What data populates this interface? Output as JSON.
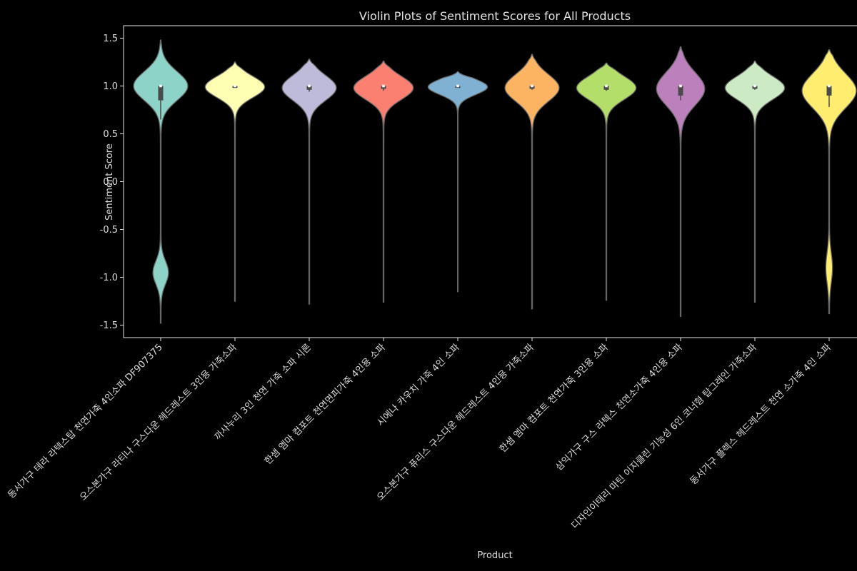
{
  "chart_data": {
    "type": "violin",
    "title": "Violin Plots of Sentiment Scores for All Products",
    "xlabel": "Product",
    "ylabel": "Sentiment Score",
    "ylim": [
      -1.63,
      1.63
    ],
    "yticks": [
      1.5,
      1.0,
      0.5,
      0.0,
      -0.5,
      -1.0,
      -1.5
    ],
    "ytick_labels": [
      "1.5",
      "1.0",
      "0.5",
      "0.0",
      "-0.5",
      "-1.0",
      "-1.5"
    ],
    "grid": false,
    "legend": "none",
    "categories": [
      "동서가구 테라 라텍스탑 천연가죽 4인소파 DF907375",
      "오스본가구 라티나 구스다운 헤드레스트 3인용 가죽소파",
      "까사누리 3인 천연 가죽 소파 시론",
      "한샘 엠마 컴포트 천연면피가죽 4인용 소파",
      "시에나 카우치 가죽 4인 소파",
      "오스본가구 퓨리스 구스다운 헤드레스트 4인용 가죽소파",
      "한샘 엠마 컴포트 천연가죽 3인용 소파",
      "삼익가구 구스 라텍스 천연소가죽 4인용 소파",
      "디자인이태리 마틴 이지클린 기능성 6인 코너형 탑그레인 가죽소파",
      "동서가구 플렉스 헤드레스트 천연 소가죽 4인 소파"
    ],
    "colors": [
      "#8dd3c7",
      "#ffffb3",
      "#bebada",
      "#fb8072",
      "#80b1d3",
      "#fdb462",
      "#b3de69",
      "#bc80bd",
      "#ccebc5",
      "#ffed6f"
    ],
    "violins": [
      {
        "min": -1.48,
        "max": 1.48,
        "q1": 0.85,
        "median": 1.0,
        "q3": 1.0,
        "whisker_low": 0.65,
        "whisker_high": 1.0,
        "main_mode": 1.0,
        "main_width": 0.9,
        "main_sd": 0.15,
        "second_mode": -0.95,
        "second_width": 0.25,
        "second_sd": 0.12
      },
      {
        "min": -1.25,
        "max": 1.25,
        "q1": 0.98,
        "median": 1.0,
        "q3": 1.0,
        "whisker_low": 0.98,
        "whisker_high": 1.0,
        "main_mode": 0.99,
        "main_width": 1.0,
        "main_sd": 0.11
      },
      {
        "min": -1.28,
        "max": 1.28,
        "q1": 0.96,
        "median": 1.0,
        "q3": 1.0,
        "whisker_low": 0.94,
        "whisker_high": 1.0,
        "main_mode": 0.98,
        "main_width": 0.9,
        "main_sd": 0.13
      },
      {
        "min": -1.26,
        "max": 1.26,
        "q1": 0.97,
        "median": 1.0,
        "q3": 1.0,
        "whisker_low": 0.95,
        "whisker_high": 1.0,
        "main_mode": 0.98,
        "main_width": 1.0,
        "main_sd": 0.12
      },
      {
        "min": -1.15,
        "max": 1.15,
        "q1": 0.98,
        "median": 1.0,
        "q3": 1.0,
        "whisker_low": 0.98,
        "whisker_high": 1.0,
        "main_mode": 0.99,
        "main_width": 1.5,
        "main_sd": 0.08
      },
      {
        "min": -1.33,
        "max": 1.33,
        "q1": 0.97,
        "median": 1.0,
        "q3": 1.0,
        "whisker_low": 0.96,
        "whisker_high": 1.0,
        "main_mode": 0.98,
        "main_width": 0.9,
        "main_sd": 0.14
      },
      {
        "min": -1.24,
        "max": 1.24,
        "q1": 0.96,
        "median": 1.0,
        "q3": 1.0,
        "whisker_low": 0.95,
        "whisker_high": 1.0,
        "main_mode": 0.98,
        "main_width": 1.0,
        "main_sd": 0.12
      },
      {
        "min": -1.41,
        "max": 1.41,
        "q1": 0.9,
        "median": 1.0,
        "q3": 1.0,
        "whisker_low": 0.85,
        "whisker_high": 1.0,
        "main_mode": 0.97,
        "main_width": 0.8,
        "main_sd": 0.17
      },
      {
        "min": -1.26,
        "max": 1.26,
        "q1": 0.97,
        "median": 1.0,
        "q3": 1.0,
        "whisker_low": 0.96,
        "whisker_high": 1.0,
        "main_mode": 0.98,
        "main_width": 1.0,
        "main_sd": 0.12
      },
      {
        "min": -1.38,
        "max": 1.38,
        "q1": 0.9,
        "median": 1.0,
        "q3": 1.0,
        "whisker_low": 0.78,
        "whisker_high": 1.0,
        "main_mode": 0.95,
        "main_width": 0.9,
        "main_sd": 0.18,
        "second_mode": -0.9,
        "second_width": 0.1,
        "second_sd": 0.15
      }
    ]
  }
}
